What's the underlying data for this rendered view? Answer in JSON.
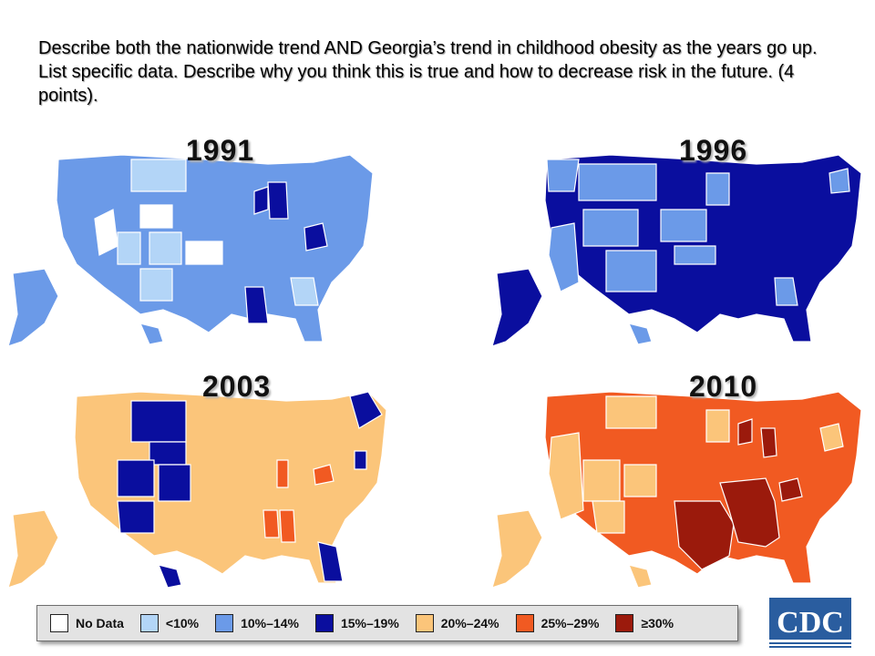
{
  "prompt_text": "Describe both the nationwide trend AND Georgia’s trend in childhood obesity as the years go up. List specific data.  Describe why you think this is true and how to decrease risk in the future. (4 points).",
  "maps": [
    {
      "year": "1991",
      "base_category": "10%–14%",
      "highlight_category": "15%–19%",
      "light_category": "<10%",
      "nodata_category": "No Data"
    },
    {
      "year": "1996",
      "base_category": "15%–19%",
      "highlight_category": "10%–14%",
      "light_category": "<10%",
      "nodata_category": ""
    },
    {
      "year": "2003",
      "base_category": "20%–24%",
      "highlight_category": "15%–19%",
      "light_category": "25%–29%",
      "nodata_category": ""
    },
    {
      "year": "2010",
      "base_category": "25%–29%",
      "highlight_category": "≥30%",
      "light_category": "20%–24%",
      "nodata_category": ""
    }
  ],
  "legend": [
    {
      "label": "No Data",
      "color": "#ffffff"
    },
    {
      "label": "<10%",
      "color": "#b3d5f7"
    },
    {
      "label": "10%–14%",
      "color": "#6b9ae8"
    },
    {
      "label": "15%–19%",
      "color": "#0a0e9e"
    },
    {
      "label": "20%–24%",
      "color": "#fbc57a"
    },
    {
      "label": "25%–29%",
      "color": "#f15a22"
    },
    {
      "label": "≥30%",
      "color": "#9b1a0c"
    }
  ],
  "logo": {
    "text": "CDC",
    "icon": "cdc-logo"
  }
}
